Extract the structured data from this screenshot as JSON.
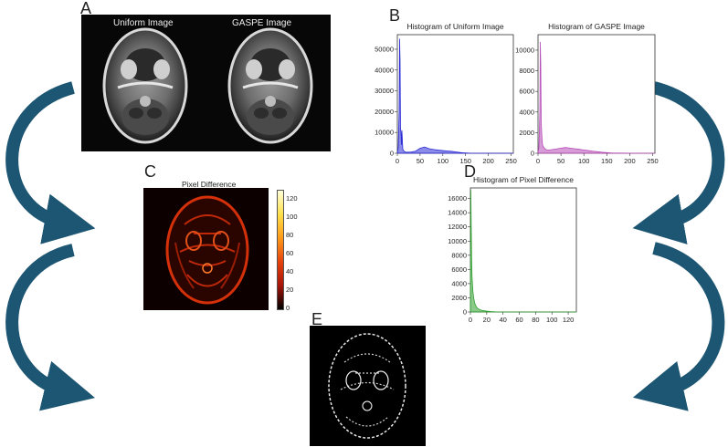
{
  "panels": {
    "a": {
      "letter": "A",
      "left_title": "Uniform Image",
      "right_title": "GASPE Image"
    },
    "b": {
      "letter": "B"
    },
    "c": {
      "letter": "C",
      "title": "Pixel Difference",
      "colorbar_ticks": [
        "120",
        "100",
        "80",
        "60",
        "40",
        "20",
        "0"
      ]
    },
    "d": {
      "letter": "D"
    },
    "e": {
      "letter": "E"
    }
  },
  "colors": {
    "arrow": "#1d5673",
    "uniform_series": "#2b2bd6",
    "gaspe_series": "#b64bb8",
    "diff_series": "#2e9e2e"
  },
  "chart_data": [
    {
      "type": "area",
      "title": "Histogram of Uniform Image",
      "xlim": [
        0,
        255
      ],
      "ylim": [
        0,
        57000
      ],
      "xticks": [
        "0",
        "50",
        "100",
        "150",
        "200",
        "250"
      ],
      "yticks": [
        "0",
        "10000",
        "20000",
        "30000",
        "40000",
        "50000"
      ],
      "x": [
        0,
        2,
        4,
        5,
        6,
        7,
        8,
        9,
        10,
        12,
        14,
        16,
        18,
        20,
        30,
        40,
        50,
        60,
        70,
        80,
        90,
        100,
        110,
        120,
        130,
        140,
        150,
        160,
        200,
        255
      ],
      "y": [
        200,
        3000,
        20000,
        55000,
        44000,
        12000,
        10000,
        4000,
        11000,
        2000,
        1200,
        800,
        600,
        500,
        600,
        1000,
        2400,
        3000,
        2200,
        1800,
        1500,
        1300,
        1100,
        900,
        600,
        300,
        150,
        50,
        10,
        0
      ]
    },
    {
      "type": "area",
      "title": "Histogram of GASPE Image",
      "xlim": [
        0,
        255
      ],
      "ylim": [
        0,
        11500
      ],
      "xticks": [
        "0",
        "50",
        "100",
        "150",
        "200",
        "250"
      ],
      "yticks": [
        "0",
        "2000",
        "4000",
        "6000",
        "8000",
        "10000"
      ],
      "x": [
        0,
        2,
        4,
        5,
        6,
        7,
        8,
        9,
        10,
        12,
        14,
        16,
        18,
        20,
        30,
        40,
        50,
        60,
        70,
        80,
        90,
        100,
        110,
        120,
        130,
        140,
        150,
        160,
        200,
        255
      ],
      "y": [
        100,
        600,
        4000,
        10800,
        8500,
        3000,
        2000,
        1200,
        800,
        600,
        500,
        400,
        350,
        300,
        350,
        420,
        500,
        560,
        500,
        440,
        380,
        320,
        260,
        200,
        150,
        100,
        60,
        30,
        10,
        0
      ]
    },
    {
      "type": "area",
      "title": "Histogram of Pixel Difference",
      "xlim": [
        0,
        130
      ],
      "ylim": [
        0,
        17500
      ],
      "xticks": [
        "0",
        "20",
        "40",
        "60",
        "80",
        "100",
        "120"
      ],
      "yticks": [
        "0",
        "2000",
        "4000",
        "6000",
        "8000",
        "10000",
        "12000",
        "14000",
        "16000"
      ],
      "x": [
        0,
        0.5,
        1,
        1.5,
        2,
        3,
        4,
        5,
        6,
        8,
        10,
        15,
        20,
        25,
        30,
        40,
        60,
        80,
        100,
        130
      ],
      "y": [
        600,
        17200,
        12000,
        7500,
        5000,
        3000,
        2000,
        1400,
        1000,
        600,
        400,
        200,
        120,
        60,
        30,
        10,
        3,
        1,
        0,
        0
      ]
    }
  ]
}
